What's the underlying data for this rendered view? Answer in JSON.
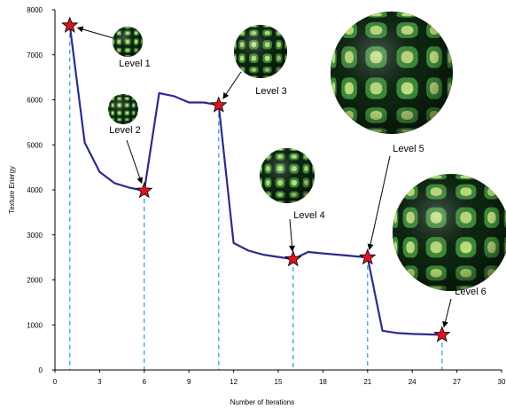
{
  "chart_data": {
    "type": "line",
    "xlabel": "Number of Iterations",
    "ylabel": "Texture Energy",
    "xlim": [
      0,
      30
    ],
    "ylim": [
      0,
      8000
    ],
    "xticks": [
      0,
      3,
      6,
      9,
      12,
      15,
      18,
      21,
      24,
      27,
      30
    ],
    "yticks": [
      0,
      1000,
      2000,
      3000,
      4000,
      5000,
      6000,
      7000,
      8000
    ],
    "grid": false,
    "line_color": "#2b2b8f",
    "series": [
      {
        "x": [
          1,
          2,
          3,
          4,
          5,
          6,
          7,
          8,
          9,
          10,
          11,
          12,
          13,
          14,
          15,
          16,
          17,
          18,
          19,
          20,
          21,
          22,
          23,
          24,
          25,
          26
        ],
        "y": [
          7650,
          5050,
          4400,
          4150,
          4050,
          3980,
          6150,
          6080,
          5940,
          5940,
          5880,
          2820,
          2650,
          2560,
          2510,
          2460,
          2620,
          2590,
          2560,
          2530,
          2500,
          870,
          820,
          800,
          790,
          780
        ]
      }
    ],
    "highlighted_points": [
      {
        "label": "Level 1",
        "x": 1,
        "y": 7650
      },
      {
        "label": "Level 2",
        "x": 6,
        "y": 3980
      },
      {
        "label": "Level 3",
        "x": 11,
        "y": 5880
      },
      {
        "label": "Level 4",
        "x": 16,
        "y": 2460
      },
      {
        "label": "Level 5",
        "x": 21,
        "y": 2500
      },
      {
        "label": "Level 6",
        "x": 26,
        "y": 780
      }
    ],
    "marker_color": "#e0141e",
    "dashed_line_color": "#1e9bd8",
    "sphere_colors": {
      "dark": "#0c2410",
      "mid": "#3d8a3a",
      "light": "#d6ef8a"
    }
  }
}
